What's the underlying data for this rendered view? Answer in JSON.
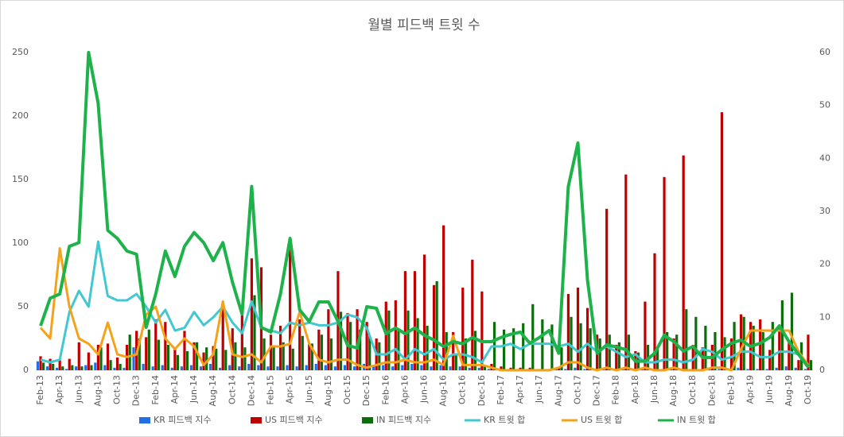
{
  "chart_data": {
    "type": "bar",
    "title": "월별 피드백 트윗 수",
    "categories": [
      "Feb-13",
      null,
      "Apr-13",
      null,
      "Jun-13",
      null,
      "Aug-13",
      null,
      "Oct-13",
      null,
      "Dec-13",
      null,
      "Feb-14",
      null,
      "Apr-14",
      null,
      "Jun-14",
      null,
      "Aug-14",
      null,
      "Oct-14",
      null,
      "Dec-14",
      null,
      "Feb-15",
      null,
      "Apr-15",
      null,
      "Jun-15",
      null,
      "Aug-15",
      null,
      "Oct-15",
      null,
      "Dec-15",
      null,
      "Feb-16",
      null,
      "Apr-16",
      null,
      "Jun-16",
      null,
      "Aug-16",
      null,
      "Oct-16",
      null,
      "Dec-16",
      null,
      "Feb-17",
      null,
      "Apr-17",
      null,
      "Jun-17",
      null,
      "Aug-17",
      null,
      "Oct-17",
      null,
      "Dec-17",
      null,
      "Feb-18",
      null,
      "Apr-18",
      null,
      "Jun-18",
      null,
      "Aug-18",
      null,
      "Oct-18",
      null,
      "Dec-18",
      null,
      "Feb-19",
      null,
      "Apr-19",
      null,
      "Jun-19",
      null,
      "Aug-19",
      null,
      "Oct-19"
    ],
    "series": [
      {
        "name": "KR 피드백 지수",
        "type": "bar",
        "color": "#1f6fe5",
        "values": [
          7,
          3,
          2,
          1,
          3,
          4,
          6,
          4,
          2,
          2,
          18,
          5,
          3,
          4,
          2,
          3,
          4,
          3,
          5,
          2,
          4,
          3,
          5,
          4,
          3,
          3,
          4,
          3,
          4,
          5,
          4,
          3,
          4,
          3,
          5,
          3,
          4,
          3,
          4,
          5,
          4,
          3,
          4,
          3,
          3,
          2,
          2,
          1,
          1,
          1,
          1,
          1,
          1,
          1,
          1,
          1,
          2,
          1,
          1,
          1,
          1,
          1,
          1,
          1,
          1,
          1,
          1,
          1,
          1,
          1,
          1,
          1,
          1,
          2,
          1,
          1,
          1,
          2,
          3,
          2,
          1
        ]
      },
      {
        "name": "US 피드백 지수",
        "type": "bar",
        "color": "#c00000",
        "values": [
          11,
          9,
          8,
          9,
          22,
          14,
          20,
          21,
          10,
          20,
          31,
          26,
          40,
          38,
          17,
          31,
          22,
          14,
          19,
          54,
          33,
          44,
          88,
          81,
          28,
          35,
          95,
          40,
          21,
          32,
          48,
          78,
          45,
          48,
          38,
          25,
          54,
          55,
          78,
          78,
          91,
          67,
          114,
          30,
          65,
          87,
          62,
          5,
          3,
          2,
          2,
          2,
          1,
          1,
          2,
          60,
          65,
          49,
          28,
          127,
          20,
          154,
          15,
          54,
          92,
          152,
          25,
          169,
          20,
          18,
          20,
          203,
          25,
          44,
          38,
          40,
          16,
          34,
          23,
          8,
          28
        ]
      },
      {
        "name": "IN 피드백 지수",
        "type": "bar",
        "color": "#0a6e0a",
        "values": [
          6,
          5,
          3,
          4,
          3,
          4,
          18,
          8,
          5,
          28,
          25,
          32,
          24,
          20,
          12,
          15,
          22,
          18,
          17,
          16,
          22,
          18,
          59,
          25,
          18,
          22,
          17,
          27,
          21,
          28,
          25,
          46,
          38,
          32,
          27,
          22,
          47,
          31,
          47,
          41,
          35,
          70,
          30,
          12,
          25,
          31,
          4,
          38,
          32,
          33,
          37,
          52,
          40,
          36,
          18,
          42,
          37,
          33,
          25,
          28,
          22,
          28,
          14,
          20,
          18,
          30,
          28,
          48,
          42,
          35,
          30,
          26,
          38,
          42,
          35,
          30,
          38,
          55,
          61,
          22,
          8
        ]
      },
      {
        "name": "KR 트윗 합",
        "type": "line",
        "axis": "y2",
        "color": "#41c8d0",
        "values": [
          2,
          1.5,
          2,
          11,
          15,
          12,
          24.3,
          14,
          13.2,
          13.2,
          14.4,
          12,
          9,
          11.4,
          7.5,
          8,
          11,
          8.5,
          10,
          12,
          9,
          7,
          13,
          8,
          7.5,
          7,
          9,
          8.5,
          9,
          8.5,
          8.5,
          9,
          10.5,
          10,
          8,
          3,
          3,
          4,
          2,
          4,
          3,
          4,
          2,
          3,
          3,
          2.5,
          1.5,
          4.5,
          4.5,
          5,
          4,
          5,
          5,
          5,
          4.5,
          5,
          3.5,
          5,
          3.5,
          4.5,
          3.5,
          2.5,
          3,
          1.5,
          1.5,
          2,
          2,
          1.5,
          2,
          4,
          3.5,
          2,
          2.5,
          3.5,
          3.5,
          2.5,
          2.5,
          3.5,
          3.5,
          3,
          0.5
        ]
      },
      {
        "name": "US 트윗 합",
        "type": "line",
        "axis": "y2",
        "color": "#f5a21b",
        "values": [
          8,
          6,
          23,
          12,
          6,
          5,
          3,
          9,
          3,
          2.5,
          3,
          10.5,
          12,
          6,
          4,
          6,
          4.5,
          1,
          3,
          13,
          3,
          2.5,
          3,
          1.5,
          4.5,
          4.5,
          5,
          11,
          5,
          2,
          1.5,
          2,
          2,
          1,
          0.5,
          1,
          1.5,
          1.5,
          2,
          1.5,
          1.5,
          2,
          1,
          6.5,
          1,
          1,
          1,
          0.5,
          0,
          0,
          0,
          0,
          0,
          0,
          0.5,
          1.5,
          1.5,
          0.5,
          0,
          0.5,
          0,
          0.5,
          0,
          0.5,
          0,
          0,
          0.5,
          0,
          0,
          0,
          0.5,
          0.5,
          0,
          4,
          7.5,
          7.5,
          7.5,
          7.5,
          7.5,
          3.5,
          1
        ]
      },
      {
        "name": "IN 트윗 합",
        "type": "line",
        "axis": "y2",
        "color": "#1db34a",
        "values": [
          8.4,
          13.6,
          14.4,
          23.4,
          24.1,
          60,
          50.4,
          26.4,
          24.9,
          22.5,
          21.9,
          8.1,
          14.4,
          22.5,
          17.7,
          23.4,
          26,
          24.1,
          20.7,
          24.1,
          16.6,
          10.6,
          34.7,
          8.1,
          7.2,
          14.4,
          24.9,
          11.4,
          9.2,
          12.9,
          12.9,
          9.2,
          4.7,
          4.2,
          12,
          11.7,
          6.9,
          8,
          6.9,
          8,
          6.6,
          5.7,
          4.5,
          5.4,
          5,
          6.2,
          5.4,
          5.4,
          6.2,
          6.8,
          7.2,
          5.1,
          6.2,
          7.5,
          3.2,
          34.7,
          42.9,
          17,
          3.2,
          4.8,
          4.4,
          3.9,
          1.7,
          1.7,
          3.2,
          6.6,
          5.4,
          3.6,
          4.5,
          2.4,
          2.4,
          3.9,
          5.1,
          5.7,
          4.5,
          5.1,
          6.2,
          8.4,
          5.4,
          3,
          0.6
        ]
      }
    ],
    "ylim": [
      0,
      250
    ],
    "yticks": [
      0,
      50,
      100,
      150,
      200,
      250
    ],
    "y2lim": [
      0,
      60
    ],
    "y2ticks": [
      0,
      10,
      20,
      30,
      40,
      50,
      60
    ],
    "grid": false,
    "legend": "bottom"
  }
}
